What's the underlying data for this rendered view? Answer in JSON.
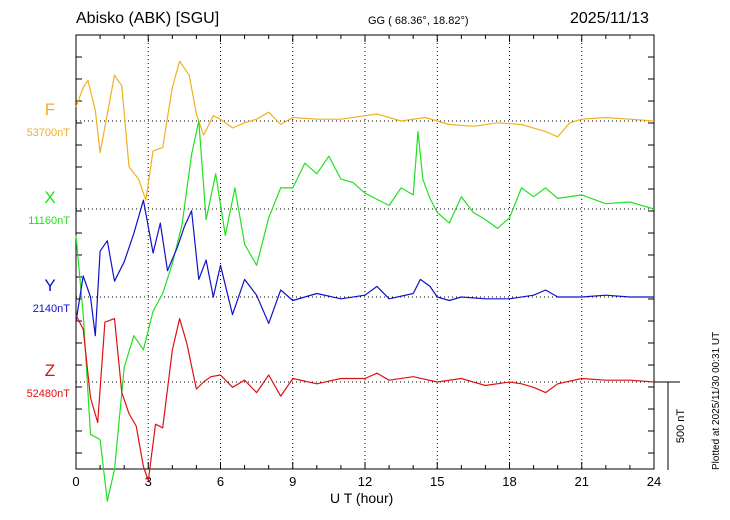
{
  "header": {
    "station": "Abisko (ABK)  [SGU]",
    "coords": "GG ( 68.36°,  18.82°)",
    "date": "2025/11/13"
  },
  "footer": {
    "plotted": "Plotted at 2025/11/30 00:31 UT"
  },
  "chart_data": {
    "type": "line",
    "title": "Abisko (ABK)  [SGU]",
    "xlabel": "U T (hour)",
    "ylabel": "",
    "xlim": [
      0,
      24
    ],
    "xticks": [
      "0",
      "3",
      "6",
      "9",
      "12",
      "15",
      "18",
      "21",
      "24"
    ],
    "grid": true,
    "scale_bar": {
      "label": "500 nT",
      "value_nT": 500
    },
    "colors": {
      "F": "#f0b020",
      "X": "#22e022",
      "Y": "#1010cc",
      "Z": "#e01010"
    },
    "series": [
      {
        "name": "F",
        "baseline": "53700nT",
        "x": [
          0,
          0.3,
          0.5,
          0.8,
          1.0,
          1.3,
          1.6,
          1.9,
          2.2,
          2.6,
          2.9,
          3.2,
          3.6,
          4.0,
          4.3,
          4.7,
          5.0,
          5.3,
          5.7,
          6.0,
          6.5,
          7.0,
          7.5,
          8.0,
          8.5,
          9.0,
          10.0,
          11.0,
          12.0,
          12.5,
          13.5,
          14.5,
          15.5,
          16.5,
          17.5,
          18.5,
          19.5,
          20.0,
          20.5,
          21.0,
          22.0,
          23.0,
          24.0
        ],
        "values": [
          80,
          190,
          230,
          60,
          -180,
          40,
          260,
          200,
          -260,
          -330,
          -450,
          -170,
          -150,
          190,
          340,
          260,
          40,
          -80,
          30,
          10,
          -40,
          -10,
          10,
          50,
          -20,
          20,
          10,
          10,
          30,
          40,
          0,
          20,
          -20,
          -30,
          -10,
          -20,
          -60,
          -90,
          -10,
          10,
          20,
          10,
          0
        ]
      },
      {
        "name": "X",
        "baseline": "11160nT",
        "x": [
          0,
          0.3,
          0.6,
          1.0,
          1.3,
          1.6,
          2.0,
          2.4,
          2.8,
          3.2,
          3.6,
          4.0,
          4.4,
          4.8,
          5.1,
          5.4,
          5.8,
          6.2,
          6.6,
          7.0,
          7.5,
          8.0,
          8.5,
          9.0,
          9.5,
          10.0,
          10.5,
          11.0,
          11.5,
          12.0,
          13.0,
          13.5,
          14.0,
          14.2,
          14.4,
          14.7,
          15.0,
          15.5,
          16.0,
          16.5,
          17.0,
          17.5,
          18.0,
          18.5,
          19.0,
          19.5,
          20.0,
          21.0,
          22.0,
          23.0,
          24.0
        ],
        "values": [
          -150,
          -600,
          -1280,
          -1310,
          -1660,
          -1480,
          -900,
          -720,
          -800,
          -580,
          -480,
          -310,
          -90,
          310,
          500,
          -60,
          200,
          -150,
          120,
          -200,
          -320,
          -50,
          120,
          120,
          260,
          200,
          300,
          170,
          150,
          90,
          20,
          120,
          80,
          440,
          170,
          60,
          -20,
          -80,
          70,
          -20,
          -60,
          -110,
          -50,
          120,
          70,
          120,
          60,
          80,
          30,
          40,
          0
        ]
      },
      {
        "name": "Y",
        "baseline": "2140nT",
        "x": [
          0,
          0.3,
          0.6,
          0.8,
          1.0,
          1.3,
          1.6,
          2.0,
          2.4,
          2.8,
          3.2,
          3.5,
          3.8,
          4.2,
          4.5,
          4.8,
          5.1,
          5.4,
          5.7,
          6.0,
          6.5,
          7.0,
          7.5,
          8.0,
          8.5,
          9.0,
          10.0,
          11.0,
          12.0,
          12.5,
          13.0,
          14.0,
          14.3,
          14.7,
          15.0,
          15.5,
          16.0,
          17.0,
          18.0,
          19.0,
          19.5,
          20.0,
          21.0,
          22.0,
          23.0,
          24.0
        ],
        "values": [
          -140,
          120,
          0,
          -220,
          260,
          320,
          90,
          200,
          360,
          550,
          250,
          420,
          150,
          280,
          400,
          490,
          100,
          210,
          0,
          180,
          -100,
          100,
          10,
          -150,
          40,
          -20,
          20,
          -10,
          10,
          60,
          -10,
          20,
          100,
          60,
          0,
          -20,
          0,
          -10,
          -10,
          10,
          40,
          0,
          0,
          10,
          0,
          0
        ]
      },
      {
        "name": "Z",
        "baseline": "52480nT",
        "x": [
          0,
          0.3,
          0.6,
          0.9,
          1.2,
          1.6,
          1.9,
          2.2,
          2.5,
          2.8,
          3.0,
          3.3,
          3.6,
          4.0,
          4.3,
          4.6,
          5.0,
          5.3,
          5.6,
          6.0,
          6.5,
          7.0,
          7.5,
          8.0,
          8.5,
          9.0,
          10.0,
          11.0,
          12.0,
          12.5,
          13.0,
          14.0,
          15.0,
          16.0,
          17.0,
          18.0,
          18.5,
          19.0,
          19.5,
          20.0,
          21.0,
          22.0,
          23.0,
          24.0
        ],
        "values": [
          380,
          300,
          -90,
          -230,
          340,
          360,
          -60,
          -180,
          -250,
          -480,
          -560,
          -240,
          -260,
          180,
          360,
          220,
          -40,
          0,
          30,
          40,
          -30,
          10,
          -60,
          40,
          -80,
          20,
          -10,
          20,
          20,
          50,
          10,
          30,
          0,
          20,
          -20,
          0,
          -10,
          -30,
          -60,
          -10,
          20,
          10,
          10,
          0
        ]
      }
    ]
  }
}
